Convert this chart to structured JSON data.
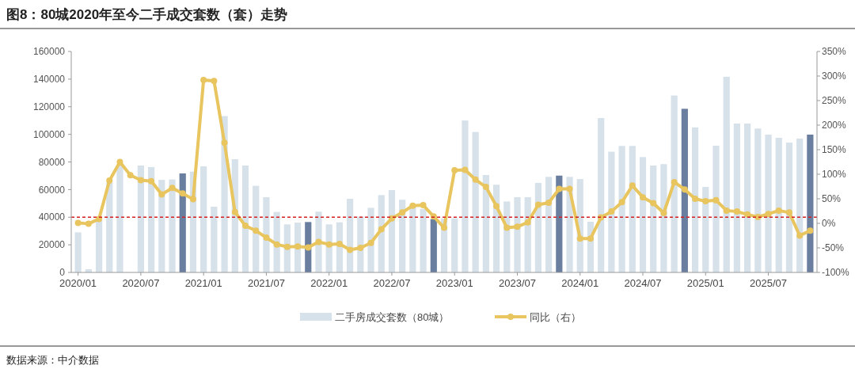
{
  "chart_data": {
    "type": "bar",
    "title": "图8：80城2020年至今二手成交套数（套）走势",
    "categories": [
      "2020/01",
      null,
      null,
      null,
      null,
      null,
      "2020/07",
      null,
      null,
      null,
      null,
      null,
      "2021/01",
      null,
      null,
      null,
      null,
      null,
      "2021/07",
      null,
      null,
      null,
      null,
      null,
      "2022/01",
      null,
      null,
      null,
      null,
      null,
      "2022/07",
      null,
      null,
      null,
      null,
      null,
      "2023/01",
      null,
      null,
      null,
      null,
      null,
      "2023/07",
      null,
      null,
      null,
      null,
      null,
      "2024/01",
      null,
      null,
      null,
      null,
      null,
      "2024/07",
      null,
      null,
      null,
      null,
      null,
      "2025/01",
      null,
      null,
      null,
      null,
      null,
      "2025/07",
      null,
      null,
      null,
      null
    ],
    "series": [
      {
        "name": "二手房成交套数（80城）",
        "color": "#d6e1ea",
        "colors": [
          "#d6e1ea",
          "#d6e1ea",
          "#d6e1ea",
          "#d6e1ea",
          "#d6e1ea",
          null,
          "#d6e1ea",
          "#d6e1ea",
          "#d6e1ea",
          "#d6e1ea",
          "#6a7f9f",
          "#d6e1ea",
          "#d6e1ea",
          "#d6e1ea",
          "#d6e1ea",
          "#d6e1ea",
          "#d6e1ea",
          "#d6e1ea",
          "#d6e1ea",
          "#d6e1ea",
          "#d6e1ea",
          "#d6e1ea",
          "#6a7f9f",
          "#d6e1ea",
          "#d6e1ea",
          "#d6e1ea",
          "#d6e1ea",
          "#d6e1ea",
          "#d6e1ea",
          "#d6e1ea",
          "#d6e1ea",
          "#d6e1ea",
          "#d6e1ea",
          "#d6e1ea",
          "#6a7f9f",
          "#d6e1ea",
          "#d6e1ea",
          "#d6e1ea",
          "#d6e1ea",
          "#d6e1ea",
          "#d6e1ea",
          "#d6e1ea",
          "#d6e1ea",
          "#d6e1ea",
          "#d6e1ea",
          "#d6e1ea",
          "#6a7f9f",
          "#d6e1ea",
          "#d6e1ea",
          "#d6e1ea",
          "#d6e1ea",
          "#d6e1ea",
          "#d6e1ea",
          "#d6e1ea",
          "#d6e1ea",
          "#d6e1ea",
          "#d6e1ea",
          "#d6e1ea",
          "#6a7f9f",
          "#d6e1ea",
          "#d6e1ea",
          "#d6e1ea",
          "#d6e1ea",
          "#d6e1ea",
          "#d6e1ea",
          "#d6e1ea",
          "#d6e1ea",
          "#d6e1ea",
          "#d6e1ea",
          "#d6e1ea",
          "#6a7f9f"
        ],
        "values": [
          29000,
          2300,
          38000,
          65000,
          78000,
          null,
          77400,
          76300,
          67000,
          67300,
          71700,
          73000,
          76800,
          47600,
          113200,
          82000,
          77400,
          62700,
          54500,
          43800,
          34800,
          36100,
          36500,
          44000,
          34800,
          36300,
          53300,
          40500,
          46800,
          56000,
          59600,
          52600,
          49000,
          46000,
          38600,
          39000,
          39200,
          110000,
          101700,
          70500,
          63500,
          51400,
          54500,
          54500,
          64800,
          69200,
          70100,
          69200,
          67600,
          36700,
          111800,
          87400,
          91600,
          91600,
          83500,
          77400,
          78400,
          128100,
          118500,
          105000,
          61900,
          91800,
          141700,
          107800,
          107800,
          104200,
          99800,
          97500,
          94000,
          96900,
          99800
        ]
      },
      {
        "name": "同比（右）",
        "type": "line",
        "axis": "y2",
        "color": "#e8c55e",
        "values": [
          1,
          -1,
          9,
          87,
          125,
          98,
          88,
          86,
          59,
          72,
          61,
          49,
          292,
          290,
          164,
          23,
          -5,
          -15,
          -29,
          -43,
          -48,
          -47,
          -49,
          -38,
          -43,
          -42,
          -54,
          -50,
          -40,
          -12,
          10,
          22,
          36,
          37,
          14,
          -9,
          108,
          109,
          89,
          74,
          35,
          -9,
          -7,
          2,
          38,
          42,
          70,
          70,
          -31,
          -31,
          12,
          24,
          43,
          77,
          53,
          41,
          21,
          84,
          69,
          50,
          45,
          47,
          26,
          24,
          18,
          13,
          19,
          26,
          22,
          -25,
          -15
        ]
      }
    ],
    "ylim": [
      0,
      160000
    ],
    "yticks": [
      0,
      20000,
      40000,
      60000,
      80000,
      100000,
      120000,
      140000,
      160000
    ],
    "y2lim": [
      -100,
      350
    ],
    "y2ticks": [
      {
        "value": -100,
        "label": "-100%"
      },
      {
        "value": -50,
        "label": "-50%"
      },
      {
        "value": 0,
        "label": "0%"
      },
      {
        "value": 50,
        "label": "50%"
      },
      {
        "value": 100,
        "label": "100%"
      },
      {
        "value": 150,
        "label": "150%"
      },
      {
        "value": 200,
        "label": "200%"
      },
      {
        "value": 250,
        "label": "250%"
      },
      {
        "value": 300,
        "label": "300%"
      },
      {
        "value": 350,
        "label": "350%"
      }
    ],
    "ref_lines": [
      {
        "axis": "y",
        "value": 40000,
        "color": "#d42020",
        "line_style": "dashed"
      }
    ],
    "marker": "circle",
    "legend": "bottom",
    "grid": false,
    "annotations": [
      "数据来源：中介数据"
    ]
  }
}
